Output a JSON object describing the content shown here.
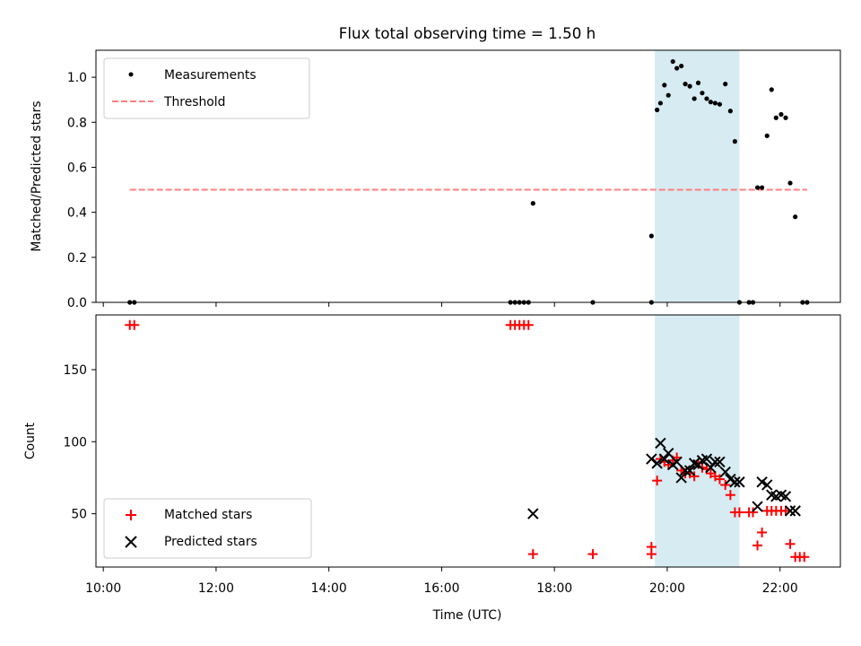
{
  "chart_data": {
    "title": "Flux total observing time = 1.50 h",
    "xlabel": "Time (UTC)",
    "x_ticks": [
      "10:00",
      "12:00",
      "14:00",
      "16:00",
      "18:00",
      "20:00",
      "22:00"
    ],
    "xlim_hours": [
      9.87,
      23.07
    ],
    "shaded_interval_hours": [
      19.78,
      21.28
    ],
    "shade_color": "#add8e6",
    "panels": [
      {
        "id": "top",
        "type": "scatter",
        "ylabel": "Matched/Predicted stars",
        "ylim": [
          0.0,
          1.12
        ],
        "y_ticks": [
          "0.0",
          "0.2",
          "0.4",
          "0.6",
          "0.8",
          "1.0"
        ],
        "y_tick_values": [
          0.0,
          0.2,
          0.4,
          0.6,
          0.8,
          1.0
        ],
        "legend": {
          "position": "upper left"
        },
        "series": [
          {
            "name": "Measurements",
            "kind": "points",
            "color": "#000000",
            "points": [
              [
                10.47,
                0.0
              ],
              [
                10.55,
                0.0
              ],
              [
                17.22,
                0.0
              ],
              [
                17.3,
                0.0
              ],
              [
                17.38,
                0.0
              ],
              [
                17.46,
                0.0
              ],
              [
                17.54,
                0.0
              ],
              [
                17.62,
                0.44
              ],
              [
                18.68,
                0.0
              ],
              [
                19.72,
                0.295
              ],
              [
                19.72,
                0.0
              ],
              [
                19.82,
                0.855
              ],
              [
                19.88,
                0.885
              ],
              [
                19.95,
                0.965
              ],
              [
                20.02,
                0.92
              ],
              [
                20.1,
                1.07
              ],
              [
                20.17,
                1.04
              ],
              [
                20.25,
                1.05
              ],
              [
                20.32,
                0.97
              ],
              [
                20.4,
                0.96
              ],
              [
                20.48,
                0.905
              ],
              [
                20.55,
                0.975
              ],
              [
                20.62,
                0.93
              ],
              [
                20.7,
                0.905
              ],
              [
                20.77,
                0.89
              ],
              [
                20.85,
                0.885
              ],
              [
                20.93,
                0.88
              ],
              [
                21.03,
                0.97
              ],
              [
                21.12,
                0.85
              ],
              [
                21.2,
                0.715
              ],
              [
                21.28,
                0.0
              ],
              [
                21.45,
                0.0
              ],
              [
                21.52,
                0.0
              ],
              [
                21.6,
                0.51
              ],
              [
                21.68,
                0.51
              ],
              [
                21.77,
                0.74
              ],
              [
                21.85,
                0.945
              ],
              [
                21.93,
                0.82
              ],
              [
                22.02,
                0.835
              ],
              [
                22.1,
                0.82
              ],
              [
                22.18,
                0.53
              ],
              [
                22.27,
                0.38
              ],
              [
                22.4,
                0.0
              ],
              [
                22.48,
                0.0
              ]
            ]
          },
          {
            "name": "Threshold",
            "kind": "dashed-line",
            "color": "#ff7f7f",
            "x": [
              10.47,
              22.48
            ],
            "y": [
              0.5,
              0.5
            ]
          }
        ]
      },
      {
        "id": "bottom",
        "type": "scatter",
        "ylabel": "Count",
        "ylim": [
          13,
          188
        ],
        "y_ticks": [
          "50",
          "100",
          "150"
        ],
        "y_tick_values": [
          50,
          100,
          150
        ],
        "legend": {
          "position": "lower left"
        },
        "series": [
          {
            "name": "Matched stars",
            "kind": "plus",
            "color": "#ff0000",
            "points": [
              [
                10.47,
                181
              ],
              [
                10.55,
                181
              ],
              [
                17.22,
                181
              ],
              [
                17.3,
                181
              ],
              [
                17.38,
                181
              ],
              [
                17.46,
                181
              ],
              [
                17.54,
                181
              ],
              [
                17.62,
                22
              ],
              [
                18.68,
                22
              ],
              [
                19.72,
                27
              ],
              [
                19.72,
                22
              ],
              [
                19.82,
                73
              ],
              [
                19.88,
                88
              ],
              [
                19.95,
                86
              ],
              [
                20.02,
                84
              ],
              [
                20.1,
                87
              ],
              [
                20.17,
                89
              ],
              [
                20.25,
                80
              ],
              [
                20.32,
                78
              ],
              [
                20.4,
                78
              ],
              [
                20.48,
                76
              ],
              [
                20.55,
                85
              ],
              [
                20.62,
                82
              ],
              [
                20.7,
                81
              ],
              [
                20.77,
                78
              ],
              [
                20.85,
                76
              ],
              [
                20.93,
                74
              ],
              [
                21.03,
                70
              ],
              [
                21.12,
                63
              ],
              [
                21.2,
                51
              ],
              [
                21.28,
                51
              ],
              [
                21.45,
                51
              ],
              [
                21.52,
                51
              ],
              [
                21.6,
                28
              ],
              [
                21.68,
                37
              ],
              [
                21.77,
                52
              ],
              [
                21.85,
                52
              ],
              [
                21.93,
                52
              ],
              [
                22.02,
                52
              ],
              [
                22.1,
                52
              ],
              [
                22.18,
                29
              ],
              [
                22.27,
                20
              ],
              [
                22.35,
                20
              ],
              [
                22.43,
                20
              ]
            ]
          },
          {
            "name": "Predicted stars",
            "kind": "cross",
            "color": "#000000",
            "points": [
              [
                17.62,
                50
              ],
              [
                19.72,
                88
              ],
              [
                19.82,
                85
              ],
              [
                19.88,
                99
              ],
              [
                19.95,
                88
              ],
              [
                20.02,
                92
              ],
              [
                20.1,
                84
              ],
              [
                20.17,
                86
              ],
              [
                20.25,
                75
              ],
              [
                20.32,
                80
              ],
              [
                20.4,
                80
              ],
              [
                20.48,
                85
              ],
              [
                20.55,
                84
              ],
              [
                20.62,
                87
              ],
              [
                20.7,
                88
              ],
              [
                20.77,
                82
              ],
              [
                20.85,
                86
              ],
              [
                20.93,
                86
              ],
              [
                21.03,
                79
              ],
              [
                21.12,
                74
              ],
              [
                21.2,
                72
              ],
              [
                21.28,
                72
              ],
              [
                21.6,
                55
              ],
              [
                21.68,
                72
              ],
              [
                21.77,
                70
              ],
              [
                21.85,
                63
              ],
              [
                21.93,
                62
              ],
              [
                22.02,
                63
              ],
              [
                22.1,
                62
              ],
              [
                22.18,
                52
              ],
              [
                22.27,
                52
              ]
            ]
          }
        ]
      }
    ]
  }
}
